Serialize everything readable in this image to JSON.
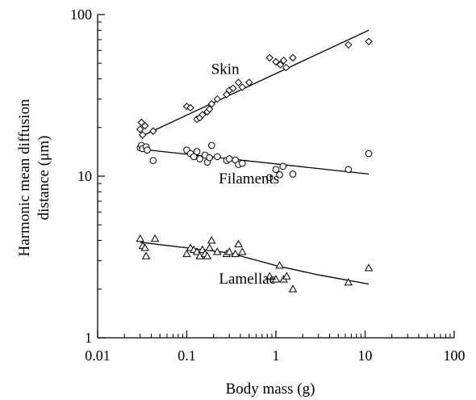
{
  "chart_data": {
    "type": "scatter",
    "title": "",
    "xlabel": "Body mass (g)",
    "ylabel_lines": [
      "Harmonic mean diffusion",
      "distance (μm)"
    ],
    "x_scale": "log",
    "y_scale": "log",
    "xlim": [
      0.01,
      100
    ],
    "ylim": [
      1,
      100
    ],
    "x_ticks": [
      "0.01",
      "0.1",
      "1",
      "10",
      "100"
    ],
    "y_ticks": [
      "1",
      "10",
      "100"
    ],
    "x_tick_values": [
      0.01,
      0.1,
      1,
      10,
      100
    ],
    "y_tick_values": [
      1,
      10,
      100
    ],
    "grid": false,
    "series": [
      {
        "name": "Skin",
        "marker": "diamond",
        "points": [
          [
            0.03,
            19.5
          ],
          [
            0.031,
            21.5
          ],
          [
            0.032,
            18.0
          ],
          [
            0.034,
            20.5
          ],
          [
            0.042,
            19.0
          ],
          [
            0.1,
            27.0
          ],
          [
            0.11,
            26.5
          ],
          [
            0.13,
            22.5
          ],
          [
            0.14,
            23.0
          ],
          [
            0.15,
            24.0
          ],
          [
            0.17,
            25.0
          ],
          [
            0.18,
            26.0
          ],
          [
            0.19,
            28.0
          ],
          [
            0.22,
            30.0
          ],
          [
            0.28,
            32.0
          ],
          [
            0.3,
            34.0
          ],
          [
            0.33,
            35.0
          ],
          [
            0.38,
            38.0
          ],
          [
            0.42,
            35.5
          ],
          [
            0.5,
            38.0
          ],
          [
            0.85,
            54.0
          ],
          [
            1.0,
            51.0
          ],
          [
            1.12,
            49.0
          ],
          [
            1.22,
            52.0
          ],
          [
            1.3,
            47.0
          ],
          [
            1.55,
            54.0
          ],
          [
            6.5,
            65.0
          ],
          [
            11.0,
            68.0
          ]
        ],
        "fit": [
          [
            0.03,
            17.5
          ],
          [
            11.0,
            80.0
          ]
        ]
      },
      {
        "name": "Filaments",
        "marker": "circle",
        "points": [
          [
            0.03,
            15.0
          ],
          [
            0.031,
            15.5
          ],
          [
            0.032,
            14.8
          ],
          [
            0.035,
            15.2
          ],
          [
            0.036,
            14.5
          ],
          [
            0.042,
            12.5
          ],
          [
            0.1,
            14.5
          ],
          [
            0.11,
            13.8
          ],
          [
            0.12,
            13.2
          ],
          [
            0.13,
            14.2
          ],
          [
            0.14,
            12.8
          ],
          [
            0.16,
            13.5
          ],
          [
            0.17,
            12.2
          ],
          [
            0.18,
            13.0
          ],
          [
            0.19,
            15.5
          ],
          [
            0.22,
            13.2
          ],
          [
            0.28,
            12.5
          ],
          [
            0.3,
            12.8
          ],
          [
            0.35,
            12.6
          ],
          [
            0.38,
            11.8
          ],
          [
            0.42,
            12.0
          ],
          [
            0.85,
            9.8
          ],
          [
            1.0,
            11.0
          ],
          [
            1.1,
            10.2
          ],
          [
            1.2,
            11.5
          ],
          [
            1.55,
            10.3
          ],
          [
            6.5,
            11.0
          ],
          [
            11.0,
            13.8
          ]
        ],
        "fit": [
          [
            0.03,
            14.7
          ],
          [
            11.0,
            10.3
          ]
        ]
      },
      {
        "name": "Lamellae",
        "marker": "triangle",
        "points": [
          [
            0.03,
            4.1
          ],
          [
            0.032,
            3.7
          ],
          [
            0.034,
            3.6
          ],
          [
            0.035,
            3.2
          ],
          [
            0.044,
            4.1
          ],
          [
            0.1,
            3.3
          ],
          [
            0.11,
            3.6
          ],
          [
            0.12,
            3.5
          ],
          [
            0.13,
            3.4
          ],
          [
            0.14,
            3.2
          ],
          [
            0.15,
            3.5
          ],
          [
            0.16,
            3.3
          ],
          [
            0.17,
            3.2
          ],
          [
            0.18,
            3.6
          ],
          [
            0.19,
            4.0
          ],
          [
            0.22,
            3.4
          ],
          [
            0.28,
            3.3
          ],
          [
            0.3,
            3.4
          ],
          [
            0.35,
            3.3
          ],
          [
            0.38,
            3.8
          ],
          [
            0.42,
            3.4
          ],
          [
            0.85,
            2.4
          ],
          [
            1.0,
            2.3
          ],
          [
            1.1,
            2.8
          ],
          [
            1.22,
            2.3
          ],
          [
            1.32,
            2.4
          ],
          [
            1.55,
            2.0
          ],
          [
            6.5,
            2.2
          ],
          [
            11.0,
            2.7
          ]
        ],
        "fit": [
          [
            0.03,
            3.9
          ],
          [
            0.3,
            3.35
          ],
          [
            1.0,
            2.8
          ],
          [
            3.0,
            2.45
          ],
          [
            11.0,
            2.15
          ]
        ]
      }
    ],
    "annotations": [
      {
        "text": "Skin",
        "at": [
          0.27,
          43.0
        ]
      },
      {
        "text": "Filaments",
        "at": [
          0.5,
          9.0
        ]
      },
      {
        "text": "Lamellae",
        "at": [
          0.48,
          2.16
        ]
      }
    ]
  }
}
